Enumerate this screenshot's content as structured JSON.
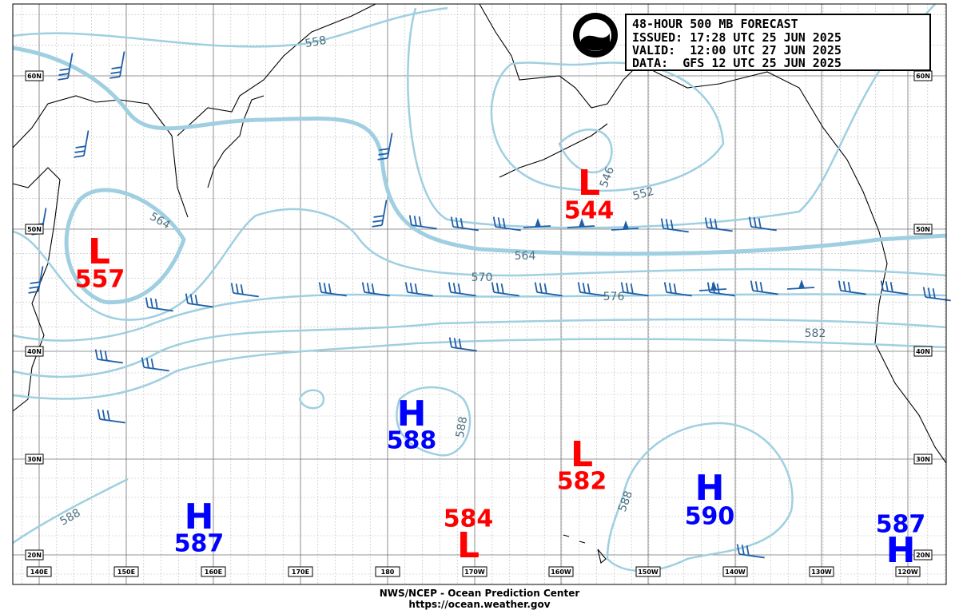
{
  "header": {
    "title": "48-HOUR 500 MB FORECAST",
    "issued": "ISSUED: 17:28 UTC 25 JUN 2025",
    "valid": "VALID:  12:00 UTC 27 JUN 2025",
    "data": "DATA:  GFS 12 UTC 25 JUN 2025"
  },
  "centers": [
    {
      "letter": "L",
      "value": 557
    },
    {
      "letter": "L",
      "value": 544
    },
    {
      "letter": "H",
      "value": 588
    },
    {
      "letter": "L",
      "value": 582
    },
    {
      "letter": "H",
      "value": 590
    },
    {
      "letter": "H",
      "value": 587
    },
    {
      "letter": "L",
      "value": 584
    },
    {
      "letter": "H",
      "value": 587
    }
  ],
  "contour_labels": [
    "558",
    "564",
    "546",
    "552",
    "564",
    "570",
    "576",
    "582",
    "588",
    "588",
    "588"
  ],
  "latitudes": [
    "60N",
    "50N",
    "40N",
    "30N",
    "20N"
  ],
  "longitudes": [
    "140E",
    "150E",
    "160E",
    "170E",
    "180",
    "170W",
    "160W",
    "150W",
    "140W",
    "130W",
    "120W"
  ],
  "footer": {
    "agency": "NWS/NCEP - Ocean Prediction Center",
    "url": "https://ocean.weather.gov"
  }
}
